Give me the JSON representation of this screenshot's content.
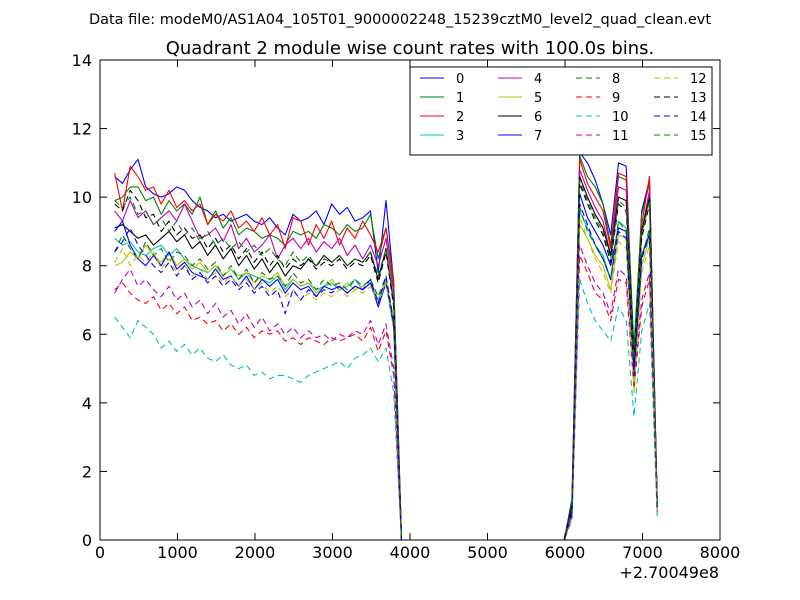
{
  "figure": {
    "suptitle": "Data file: modeM0/AS1A04_105T01_9000002248_15239cztM0_level2_quad_clean.evt"
  },
  "chart_data": {
    "type": "line",
    "title": "Quadrant 2 module wise count rates with 100.0s bins.",
    "xlabel": "",
    "ylabel": "",
    "xlim": [
      0,
      8000
    ],
    "ylim": [
      0,
      14
    ],
    "x_offset_label": "+2.70049e8",
    "x_ticks": [
      0,
      1000,
      2000,
      3000,
      4000,
      5000,
      6000,
      7000,
      8000
    ],
    "y_ticks": [
      0,
      2,
      4,
      6,
      8,
      10,
      12,
      14
    ],
    "grid": false,
    "legend_position": "top-right",
    "legend_columns": 4,
    "x": [
      190,
      290,
      390,
      490,
      590,
      690,
      790,
      890,
      990,
      1090,
      1190,
      1290,
      1390,
      1490,
      1590,
      1690,
      1790,
      1890,
      1990,
      2090,
      2190,
      2290,
      2390,
      2490,
      2590,
      2690,
      2790,
      2890,
      2990,
      3090,
      3190,
      3290,
      3390,
      3490,
      3590,
      3690,
      3790,
      3890,
      3990,
      4090,
      5990,
      6090,
      6190,
      6290,
      6390,
      6490,
      6590,
      6690,
      6790,
      6890,
      6990,
      7090,
      7190
    ],
    "series": [
      {
        "name": "0",
        "color": "#0000ff",
        "dash": "solid",
        "values": [
          10.6,
          10.4,
          10.8,
          11.1,
          10.3,
          10.1,
          10.0,
          10.1,
          10.3,
          10.2,
          9.9,
          9.7,
          9.6,
          9.4,
          9.5,
          9.3,
          9.4,
          9.5,
          9.3,
          9.2,
          9.4,
          9.1,
          8.9,
          9.5,
          9.3,
          9.4,
          9.6,
          9.2,
          9.8,
          9.5,
          9.7,
          9.3,
          9.4,
          9.6,
          7.8,
          9.9,
          7.5,
          0.0,
          0.0,
          0.0,
          0.0,
          1.2,
          11.3,
          11.0,
          10.5,
          9.8,
          8.9,
          11.0,
          10.9,
          5.2,
          9.6,
          10.5,
          1.2
        ]
      },
      {
        "name": "1",
        "color": "#008000",
        "dash": "solid",
        "values": [
          9.9,
          10.0,
          10.3,
          10.3,
          9.9,
          10.0,
          9.5,
          9.9,
          9.6,
          9.8,
          9.5,
          10.0,
          9.2,
          9.6,
          9.1,
          9.4,
          8.9,
          9.1,
          9.0,
          8.8,
          8.9,
          8.8,
          8.6,
          9.0,
          8.9,
          9.0,
          8.8,
          9.2,
          9.1,
          8.9,
          9.2,
          9.0,
          9.1,
          9.5,
          8.2,
          9.1,
          7.6,
          0.0,
          0.0,
          0.0,
          0.0,
          1.1,
          11.2,
          10.6,
          10.3,
          9.8,
          8.6,
          10.6,
          10.5,
          5.6,
          9.5,
          10.4,
          1.1
        ]
      },
      {
        "name": "2",
        "color": "#ff0000",
        "dash": "solid",
        "values": [
          10.7,
          9.6,
          10.9,
          10.6,
          10.2,
          10.3,
          9.8,
          10.2,
          9.7,
          9.9,
          9.6,
          9.8,
          9.2,
          9.5,
          9.3,
          9.6,
          9.1,
          9.3,
          9.0,
          9.4,
          8.9,
          9.2,
          8.5,
          9.4,
          9.3,
          8.6,
          9.2,
          8.8,
          9.3,
          8.6,
          9.1,
          8.8,
          9.3,
          8.9,
          8.4,
          9.1,
          7.4,
          0.0,
          0.0,
          0.0,
          0.0,
          1.0,
          11.1,
          10.4,
          10.0,
          9.6,
          8.5,
          10.7,
          10.6,
          5.0,
          9.2,
          10.6,
          1.0
        ]
      },
      {
        "name": "3",
        "color": "#00bfbf",
        "dash": "solid",
        "values": [
          8.8,
          8.6,
          8.7,
          8.4,
          8.3,
          8.5,
          8.6,
          8.3,
          8.5,
          8.2,
          8.0,
          7.9,
          7.8,
          8.0,
          7.7,
          7.9,
          7.6,
          7.8,
          7.7,
          7.6,
          7.5,
          7.7,
          7.3,
          7.6,
          7.4,
          7.5,
          7.3,
          7.4,
          7.5,
          7.3,
          7.4,
          7.6,
          7.3,
          7.5,
          7.0,
          7.6,
          6.4,
          0.0,
          0.0,
          0.0,
          0.0,
          0.8,
          9.6,
          9.1,
          8.6,
          8.3,
          7.6,
          9.3,
          9.1,
          4.6,
          8.3,
          9.0,
          0.9
        ]
      },
      {
        "name": "4",
        "color": "#bf00bf",
        "dash": "solid",
        "values": [
          9.6,
          9.3,
          9.9,
          9.4,
          9.6,
          9.2,
          9.4,
          9.6,
          9.3,
          9.8,
          9.3,
          8.8,
          8.9,
          9.1,
          8.7,
          9.2,
          8.5,
          8.8,
          8.4,
          8.6,
          8.9,
          8.2,
          8.6,
          8.8,
          8.5,
          8.8,
          8.4,
          8.7,
          8.5,
          8.8,
          8.3,
          8.6,
          8.2,
          8.6,
          8.0,
          8.8,
          7.2,
          0.0,
          0.0,
          0.0,
          0.0,
          1.0,
          10.8,
          10.2,
          9.7,
          9.3,
          8.3,
          10.3,
          10.2,
          5.1,
          9.0,
          10.2,
          1.1
        ]
      },
      {
        "name": "5",
        "color": "#bfbf00",
        "dash": "solid",
        "values": [
          8.0,
          8.1,
          8.4,
          8.2,
          8.6,
          8.3,
          8.1,
          8.4,
          8.0,
          8.2,
          7.9,
          8.1,
          7.8,
          8.0,
          7.7,
          7.9,
          7.7,
          7.8,
          7.5,
          7.7,
          7.6,
          7.8,
          7.4,
          7.6,
          7.4,
          7.5,
          7.2,
          7.4,
          7.6,
          7.3,
          7.5,
          7.3,
          7.4,
          7.6,
          6.9,
          7.6,
          6.2,
          0.0,
          0.0,
          0.0,
          0.0,
          0.8,
          9.2,
          8.8,
          8.3,
          8.0,
          7.3,
          8.9,
          8.8,
          4.3,
          8.0,
          8.8,
          0.9
        ]
      },
      {
        "name": "6",
        "color": "#000000",
        "dash": "solid",
        "values": [
          9.1,
          9.2,
          9.0,
          8.8,
          8.9,
          8.6,
          8.8,
          9.0,
          8.7,
          8.9,
          8.5,
          8.7,
          8.3,
          8.6,
          8.2,
          8.5,
          8.0,
          8.3,
          7.9,
          8.2,
          7.8,
          8.1,
          7.7,
          8.0,
          7.9,
          8.2,
          8.0,
          8.3,
          8.1,
          8.3,
          8.0,
          8.2,
          8.1,
          8.4,
          7.6,
          8.5,
          6.9,
          0.0,
          0.0,
          0.0,
          0.0,
          1.0,
          10.6,
          10.0,
          9.5,
          9.1,
          8.3,
          10.0,
          9.9,
          5.3,
          9.0,
          10.0,
          1.1
        ]
      },
      {
        "name": "7",
        "color": "#0000ff",
        "dash": "solid",
        "values": [
          9.0,
          9.3,
          8.6,
          8.2,
          8.0,
          8.3,
          8.0,
          8.4,
          7.9,
          8.1,
          7.8,
          7.7,
          7.6,
          7.9,
          7.6,
          7.7,
          7.4,
          7.7,
          7.3,
          7.6,
          7.4,
          7.6,
          7.2,
          7.5,
          7.3,
          7.4,
          7.1,
          7.4,
          7.3,
          7.4,
          7.2,
          7.4,
          7.3,
          7.5,
          6.8,
          7.5,
          6.2,
          0.0,
          0.0,
          0.0,
          0.0,
          0.8,
          10.1,
          9.4,
          9.0,
          8.6,
          8.0,
          9.1,
          9.0,
          4.8,
          8.3,
          8.9,
          1.0
        ]
      },
      {
        "name": "8",
        "color": "#008000",
        "dash": "dashed",
        "values": [
          8.4,
          8.9,
          8.5,
          8.2,
          8.7,
          8.3,
          8.5,
          8.1,
          8.4,
          8.3,
          8.0,
          8.2,
          7.9,
          8.1,
          7.7,
          8.0,
          7.6,
          7.9,
          7.5,
          7.8,
          7.6,
          7.7,
          7.4,
          7.8,
          7.5,
          7.6,
          7.3,
          7.6,
          7.4,
          7.5,
          7.3,
          7.6,
          7.4,
          7.6,
          7.1,
          7.7,
          6.4,
          0.0,
          0.0,
          0.0,
          0.0,
          0.8,
          9.7,
          9.0,
          8.6,
          8.2,
          7.6,
          9.3,
          9.0,
          4.6,
          8.2,
          9.1,
          0.9
        ]
      },
      {
        "name": "9",
        "color": "#ff0000",
        "dash": "dashed",
        "values": [
          7.3,
          7.5,
          7.2,
          7.0,
          6.9,
          7.1,
          6.7,
          6.9,
          6.6,
          6.8,
          6.4,
          6.5,
          6.3,
          6.4,
          6.1,
          6.3,
          6.0,
          6.2,
          5.9,
          6.1,
          6.0,
          6.1,
          5.8,
          5.9,
          5.7,
          5.9,
          5.8,
          5.7,
          5.9,
          5.8,
          5.9,
          6.0,
          5.8,
          6.2,
          5.5,
          6.1,
          4.8,
          0.0,
          0.0,
          0.0,
          0.0,
          0.7,
          8.3,
          7.8,
          7.2,
          7.0,
          6.4,
          7.6,
          7.5,
          4.4,
          6.8,
          7.6,
          0.8
        ]
      },
      {
        "name": "10",
        "color": "#00bfbf",
        "dash": "dashed",
        "values": [
          6.5,
          6.2,
          5.9,
          6.4,
          6.2,
          6.0,
          5.6,
          5.8,
          5.5,
          5.7,
          5.4,
          5.6,
          5.3,
          5.2,
          5.4,
          5.1,
          5.0,
          5.1,
          4.8,
          4.9,
          4.7,
          4.8,
          4.8,
          4.7,
          4.6,
          4.8,
          4.9,
          5.0,
          5.1,
          5.2,
          5.0,
          5.3,
          5.4,
          5.6,
          5.2,
          5.6,
          4.3,
          0.0,
          0.0,
          0.0,
          0.0,
          0.6,
          7.6,
          6.9,
          6.4,
          6.1,
          5.8,
          6.8,
          6.4,
          3.6,
          6.1,
          6.9,
          0.7
        ]
      },
      {
        "name": "11",
        "color": "#bf00bf",
        "dash": "dashed",
        "values": [
          7.2,
          7.6,
          7.9,
          7.4,
          7.6,
          7.3,
          7.1,
          7.4,
          7.0,
          7.2,
          6.8,
          7.0,
          6.6,
          6.9,
          6.5,
          6.7,
          6.3,
          6.6,
          6.2,
          6.5,
          6.1,
          6.3,
          6.0,
          6.2,
          5.9,
          6.1,
          5.9,
          6.0,
          5.8,
          6.0,
          5.9,
          6.1,
          6.0,
          6.4,
          5.7,
          6.3,
          5.0,
          0.0,
          0.0,
          0.0,
          0.0,
          0.7,
          8.6,
          8.0,
          7.5,
          7.2,
          6.6,
          7.9,
          7.7,
          4.7,
          7.0,
          7.8,
          0.8
        ]
      },
      {
        "name": "12",
        "color": "#bfbf00",
        "dash": "dashed",
        "values": [
          8.1,
          8.5,
          8.0,
          8.3,
          8.1,
          8.4,
          7.9,
          8.2,
          7.8,
          8.0,
          7.7,
          7.9,
          7.6,
          7.8,
          7.5,
          7.7,
          7.4,
          7.6,
          7.3,
          7.5,
          7.2,
          7.4,
          7.1,
          7.3,
          7.0,
          7.2,
          7.0,
          7.2,
          7.1,
          7.3,
          7.1,
          7.3,
          7.2,
          7.4,
          6.9,
          7.5,
          6.1,
          0.0,
          0.0,
          0.0,
          0.0,
          0.8,
          9.4,
          8.8,
          8.2,
          7.8,
          7.2,
          8.7,
          8.5,
          4.4,
          7.8,
          8.6,
          0.9
        ]
      },
      {
        "name": "13",
        "color": "#000000",
        "dash": "dashed",
        "values": [
          9.8,
          9.6,
          10.2,
          9.9,
          9.4,
          9.5,
          9.0,
          9.3,
          8.9,
          9.1,
          8.8,
          8.9,
          8.5,
          8.8,
          8.4,
          8.6,
          8.2,
          8.5,
          8.1,
          8.4,
          8.0,
          8.3,
          7.9,
          8.2,
          8.0,
          8.2,
          7.9,
          8.1,
          8.0,
          8.2,
          7.9,
          8.1,
          8.0,
          8.3,
          7.5,
          8.4,
          6.8,
          0.0,
          0.0,
          0.0,
          0.0,
          0.9,
          10.4,
          9.8,
          9.3,
          8.9,
          8.1,
          9.8,
          9.6,
          5.2,
          8.8,
          9.8,
          1.0
        ]
      },
      {
        "name": "14",
        "color": "#0000ff",
        "dash": "dashed",
        "values": [
          8.4,
          8.7,
          9.1,
          8.6,
          8.3,
          8.0,
          7.8,
          8.1,
          7.7,
          8.0,
          7.6,
          7.8,
          7.5,
          7.7,
          7.4,
          7.6,
          7.3,
          7.5,
          7.2,
          7.4,
          7.1,
          7.3,
          6.6,
          7.3,
          7.0,
          7.3,
          7.1,
          7.3,
          7.2,
          7.4,
          7.2,
          7.4,
          7.3,
          7.6,
          6.9,
          7.7,
          6.3,
          0.0,
          0.0,
          0.0,
          0.0,
          0.8,
          9.8,
          9.2,
          8.6,
          8.2,
          7.6,
          9.0,
          8.8,
          4.8,
          8.2,
          8.9,
          0.9
        ]
      },
      {
        "name": "15",
        "color": "#008000",
        "dash": "dashed",
        "values": [
          9.9,
          9.7,
          10.0,
          9.5,
          9.6,
          9.2,
          9.4,
          9.0,
          9.3,
          8.9,
          9.1,
          8.7,
          9.0,
          8.6,
          8.8,
          8.5,
          8.7,
          8.4,
          8.6,
          8.3,
          8.5,
          8.2,
          8.0,
          8.4,
          8.1,
          8.3,
          8.0,
          8.2,
          8.1,
          8.3,
          8.0,
          8.2,
          8.1,
          8.4,
          7.7,
          8.5,
          7.0,
          0.0,
          0.0,
          0.0,
          0.0,
          0.9,
          10.5,
          9.9,
          9.4,
          9.0,
          8.2,
          9.9,
          9.7,
          5.3,
          8.9,
          9.9,
          1.0
        ]
      }
    ]
  }
}
